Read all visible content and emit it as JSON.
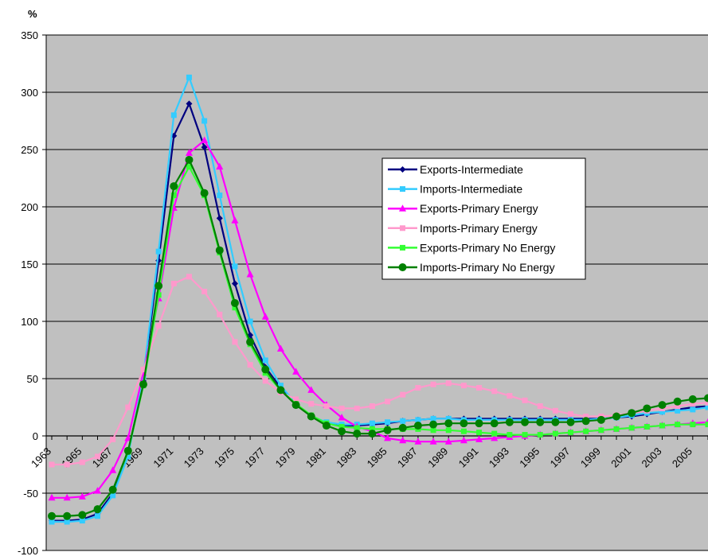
{
  "chart_data": {
    "type": "line",
    "title": "",
    "xlabel": "",
    "ylabel": "%",
    "ylim": [
      -100,
      350
    ],
    "yticks": [
      -100,
      -50,
      0,
      50,
      100,
      150,
      200,
      250,
      300,
      350
    ],
    "xlim": [
      1963,
      2006
    ],
    "xticks": [
      "1963",
      "1965",
      "1967",
      "1969",
      "1971",
      "1973",
      "1975",
      "1977",
      "1979",
      "1981",
      "1983",
      "1985",
      "1987",
      "1989",
      "1991",
      "1993",
      "1995",
      "1997",
      "1999",
      "2001",
      "2003",
      "2005"
    ],
    "grid": "horizontal",
    "plot_background": "#c0c0c0",
    "legend_position": "center-right",
    "x": [
      1963,
      1964,
      1965,
      1966,
      1967,
      1968,
      1969,
      1970,
      1971,
      1972,
      1973,
      1974,
      1975,
      1976,
      1977,
      1978,
      1979,
      1980,
      1981,
      1982,
      1983,
      1984,
      1985,
      1986,
      1987,
      1988,
      1989,
      1990,
      1991,
      1992,
      1993,
      1994,
      1995,
      1996,
      1997,
      1998,
      1999,
      2000,
      2001,
      2002,
      2003,
      2004,
      2005,
      2006
    ],
    "series": [
      {
        "name": "Exports-Intermediate",
        "color": "#000080",
        "marker": "diamond",
        "values": [
          -74,
          -74,
          -73,
          -68,
          -50,
          -15,
          48,
          153,
          262,
          290,
          252,
          190,
          133,
          88,
          60,
          42,
          28,
          17,
          11,
          9,
          9,
          10,
          11,
          13,
          14,
          15,
          15,
          15,
          15,
          15,
          15,
          15,
          15,
          15,
          15,
          15,
          15,
          16,
          17,
          19,
          21,
          23,
          25,
          26
        ]
      },
      {
        "name": "Imports-Intermediate",
        "color": "#33ccff",
        "marker": "square",
        "values": [
          -75,
          -75,
          -74,
          -70,
          -52,
          -18,
          52,
          161,
          280,
          313,
          275,
          210,
          148,
          100,
          66,
          44,
          28,
          17,
          12,
          10,
          10,
          11,
          12,
          13,
          14,
          15,
          15,
          14,
          14,
          14,
          14,
          14,
          14,
          14,
          14,
          14,
          15,
          16,
          18,
          20,
          21,
          22,
          23,
          25
        ]
      },
      {
        "name": "Exports-Primary Energy",
        "color": "#ff00ff",
        "marker": "triangle",
        "values": [
          -54,
          -54,
          -53,
          -48,
          -30,
          -2,
          55,
          120,
          199,
          247,
          258,
          235,
          188,
          141,
          104,
          76,
          56,
          40,
          27,
          16,
          8,
          4,
          -2,
          -4,
          -5,
          -5,
          -5,
          -4,
          -3,
          -2,
          -1,
          0,
          1,
          2,
          3,
          4,
          5,
          6,
          7,
          8,
          9,
          10,
          11,
          12
        ]
      },
      {
        "name": "Imports-Primary Energy",
        "color": "#ff99cc",
        "marker": "square",
        "values": [
          -25,
          -25,
          -23,
          -18,
          -3,
          25,
          58,
          96,
          133,
          139,
          126,
          106,
          82,
          62,
          48,
          38,
          32,
          28,
          26,
          24,
          24,
          26,
          30,
          36,
          42,
          45,
          46,
          44,
          42,
          39,
          35,
          31,
          26,
          22,
          19,
          17,
          17,
          18,
          20,
          22,
          24,
          26,
          28,
          29
        ]
      },
      {
        "name": "Exports-Primary No Energy",
        "color": "#33ff33",
        "marker": "square",
        "values": [
          -70,
          -70,
          -69,
          -64,
          -47,
          -14,
          44,
          123,
          210,
          235,
          210,
          160,
          112,
          80,
          55,
          40,
          28,
          18,
          11,
          8,
          7,
          6,
          6,
          6,
          6,
          5,
          5,
          4,
          3,
          2,
          1,
          1,
          1,
          2,
          3,
          4,
          5,
          6,
          7,
          8,
          9,
          10,
          10,
          10
        ]
      },
      {
        "name": "Imports-Primary No Energy",
        "color": "#008000",
        "marker": "circle",
        "values": [
          -70,
          -70,
          -69,
          -64,
          -47,
          -13,
          45,
          131,
          218,
          241,
          212,
          162,
          116,
          82,
          58,
          40,
          27,
          17,
          9,
          4,
          2,
          2,
          5,
          7,
          9,
          10,
          11,
          11,
          11,
          11,
          12,
          12,
          12,
          12,
          12,
          13,
          14,
          17,
          20,
          24,
          27,
          30,
          32,
          33
        ]
      }
    ]
  }
}
